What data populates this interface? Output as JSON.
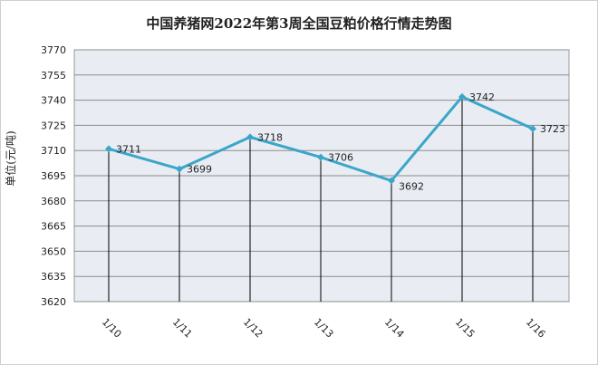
{
  "chart_data": {
    "type": "line",
    "title": "中国养猪网2022年第3周全国豆粕价格行情走势图",
    "xlabel": "",
    "ylabel": "单位(元/吨)",
    "categories": [
      "1/10",
      "1/11",
      "1/12",
      "1/13",
      "1/14",
      "1/15",
      "1/16"
    ],
    "series": [
      {
        "values": [
          3711,
          3699,
          3718,
          3706,
          3692,
          3742,
          3723
        ]
      }
    ],
    "data_labels": [
      "3711",
      "3699",
      "3718",
      "3706",
      "3692",
      "3742",
      "3723"
    ],
    "y_ticks": [
      "3620",
      "3635",
      "3650",
      "3665",
      "3680",
      "3695",
      "3710",
      "3725",
      "3740",
      "3755",
      "3770"
    ],
    "ylim": [
      3620,
      3770
    ],
    "grid": true,
    "legend": "none",
    "colors": {
      "line": "#3ba6c9",
      "marker": "#3ba6c9",
      "plot_background": "#e9edf3",
      "gridline": "#8c8c8c",
      "drop_line": "#000000"
    }
  }
}
